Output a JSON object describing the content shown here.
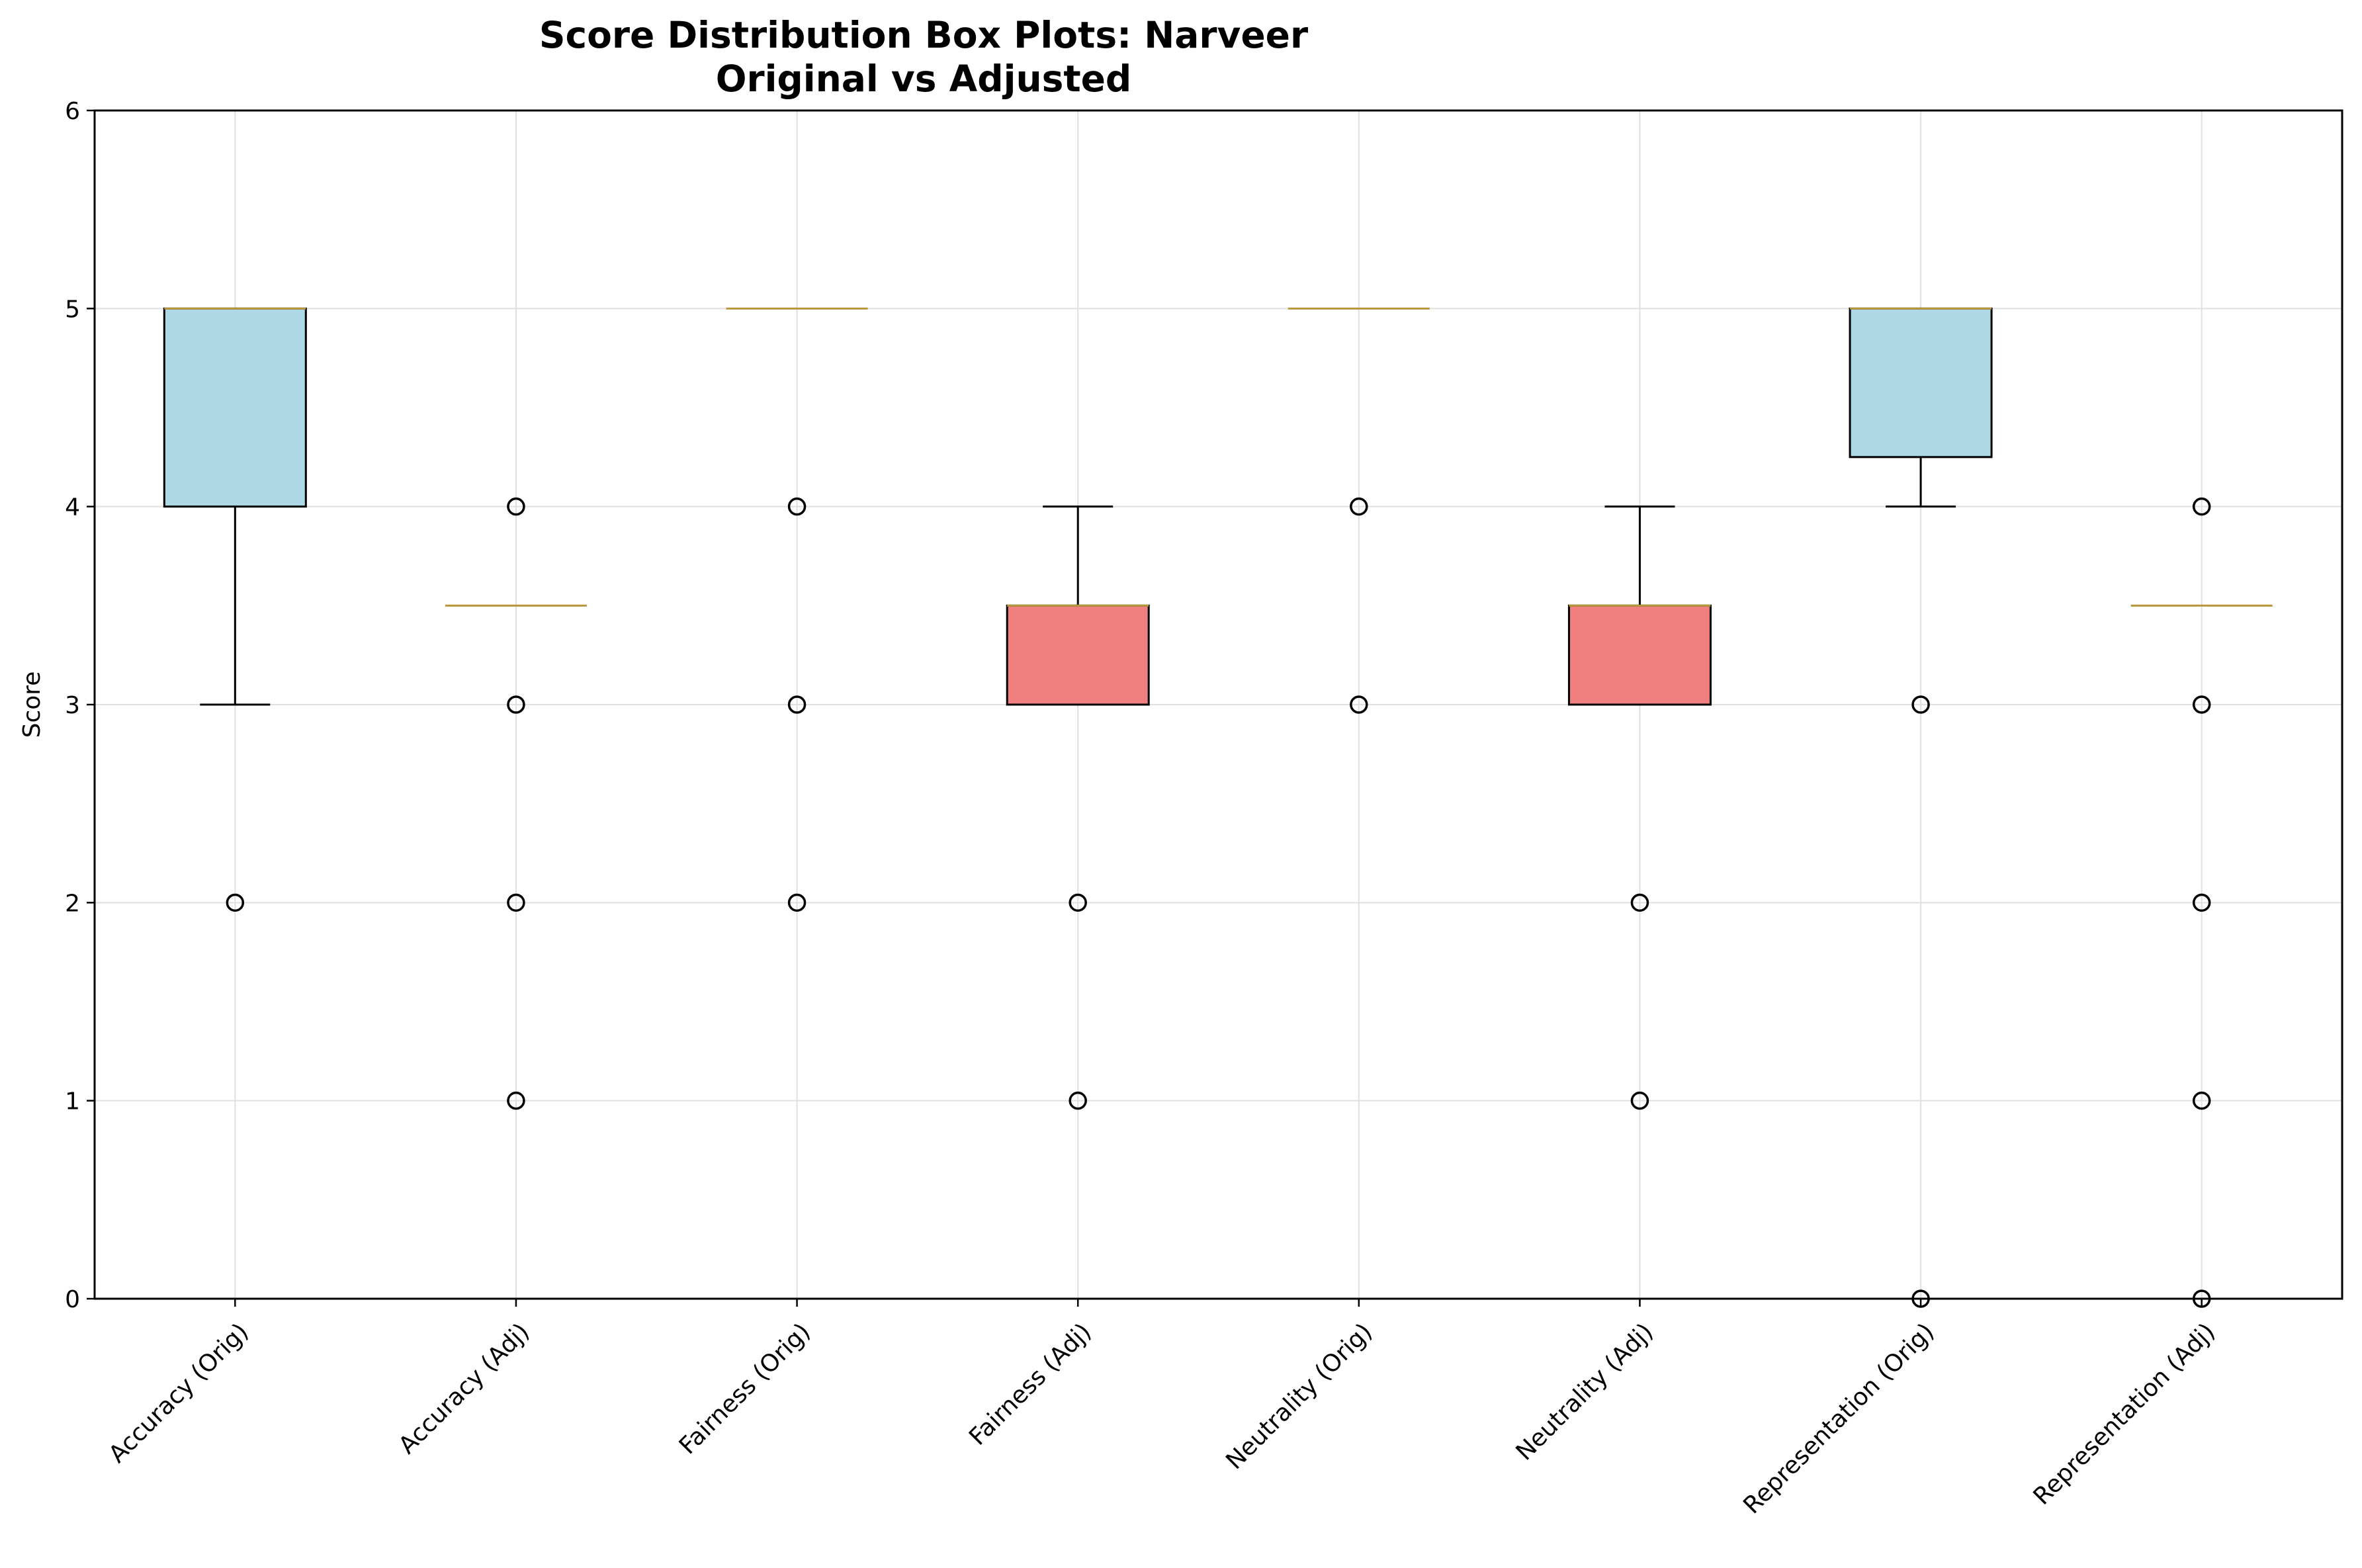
{
  "chart_data": {
    "type": "box",
    "title": "Score Distribution Box Plots: Narveer",
    "subtitle": "Original vs Adjusted",
    "xlabel": "",
    "ylabel": "Score",
    "ylim": [
      0,
      6
    ],
    "yticks": [
      "0",
      "1",
      "2",
      "3",
      "4",
      "5",
      "6"
    ],
    "grid": true,
    "categories": [
      "Accuracy (Orig)",
      "Accuracy (Adj)",
      "Fairness (Orig)",
      "Fairness (Adj)",
      "Neutrality (Orig)",
      "Neutrality (Adj)",
      "Representation (Orig)",
      "Representation (Adj)"
    ],
    "boxes": [
      {
        "q1": 4,
        "median": 5,
        "q3": 5,
        "whisker_low": 3,
        "whisker_high": 5,
        "outliers": [
          2
        ],
        "color": "#add8e6"
      },
      {
        "q1": 3.5,
        "median": 3.5,
        "q3": 3.5,
        "whisker_low": 3.5,
        "whisker_high": 3.5,
        "outliers": [
          4,
          3,
          2,
          1
        ],
        "color": "#f08080"
      },
      {
        "q1": 5,
        "median": 5,
        "q3": 5,
        "whisker_low": 5,
        "whisker_high": 5,
        "outliers": [
          4,
          3,
          2
        ],
        "color": "#add8e6"
      },
      {
        "q1": 3,
        "median": 3.5,
        "q3": 3.5,
        "whisker_low": 3,
        "whisker_high": 4,
        "outliers": [
          2,
          1
        ],
        "color": "#f08080"
      },
      {
        "q1": 5,
        "median": 5,
        "q3": 5,
        "whisker_low": 5,
        "whisker_high": 5,
        "outliers": [
          4,
          3
        ],
        "color": "#add8e6"
      },
      {
        "q1": 3,
        "median": 3.5,
        "q3": 3.5,
        "whisker_low": 3,
        "whisker_high": 4,
        "outliers": [
          2,
          1
        ],
        "color": "#f08080"
      },
      {
        "q1": 4.25,
        "median": 5,
        "q3": 5,
        "whisker_low": 4,
        "whisker_high": 5,
        "outliers": [
          3,
          0
        ],
        "color": "#add8e6"
      },
      {
        "q1": 3.5,
        "median": 3.5,
        "q3": 3.5,
        "whisker_low": 3.5,
        "whisker_high": 3.5,
        "outliers": [
          4,
          3,
          2,
          1,
          0
        ],
        "color": "#f08080"
      }
    ],
    "colors": {
      "original": "#add8e6",
      "adjusted": "#f08080",
      "median": "#b8963c",
      "grid": "#e0e0e0"
    }
  }
}
